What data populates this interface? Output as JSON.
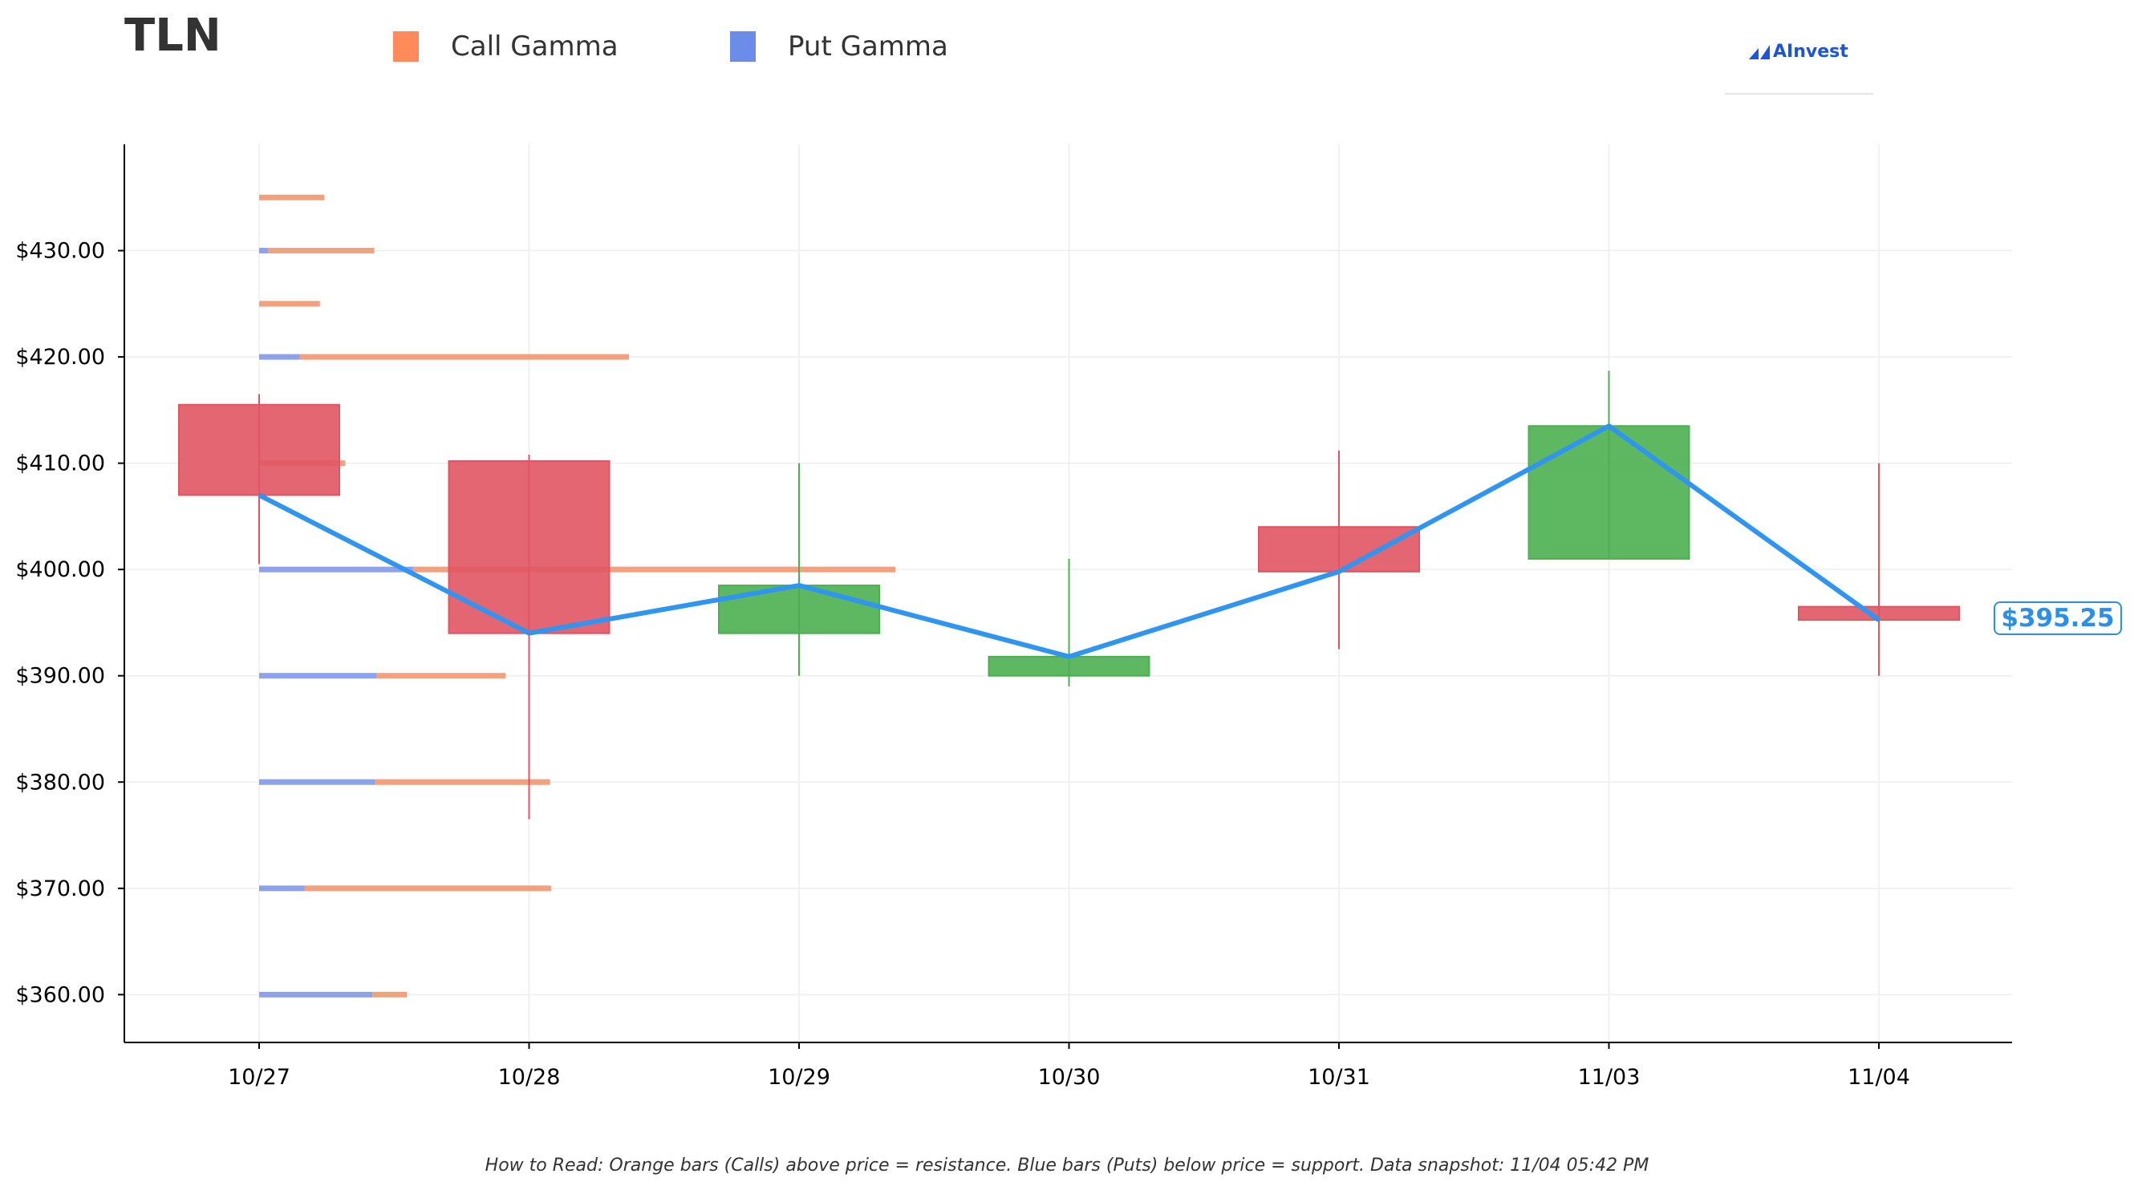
{
  "ticker": "TLN",
  "legend": [
    {
      "label": "Call Gamma",
      "color": "#ff8a5c"
    },
    {
      "label": "Put Gamma",
      "color": "#6b8ce8"
    }
  ],
  "logo": {
    "text": "AInvest"
  },
  "current_price_label": "$395.25",
  "footnote": "How to Read: Orange bars (Calls) above price = resistance. Blue bars (Puts) below price = support. Data snapshot: 11/04 05:42 PM",
  "colors": {
    "up": "#4caf50",
    "down": "#e05563",
    "price_line": "#2f95f0",
    "call": "#f2a07e",
    "put": "#8ea2ec",
    "grid": "#eeeeee",
    "axis": "#000000"
  },
  "chart_data": {
    "type": "candlestick",
    "categories": [
      "10/27",
      "10/28",
      "10/29",
      "10/30",
      "10/31",
      "11/03",
      "11/04"
    ],
    "ylim": [
      355.5,
      440
    ],
    "yticks": [
      360,
      370,
      380,
      390,
      400,
      410,
      420,
      430
    ],
    "ytick_labels": [
      "$360.00",
      "$370.00",
      "$380.00",
      "$390.00",
      "$400.00",
      "$410.00",
      "$420.00",
      "$430.00"
    ],
    "ohlc": [
      {
        "date": "10/27",
        "open": 415.5,
        "high": 416.5,
        "low": 400.5,
        "close": 407.0
      },
      {
        "date": "10/28",
        "open": 410.2,
        "high": 410.8,
        "low": 376.5,
        "close": 394.0
      },
      {
        "date": "10/29",
        "open": 394.0,
        "high": 410.0,
        "low": 390.0,
        "close": 398.5
      },
      {
        "date": "10/30",
        "open": 390.0,
        "high": 401.0,
        "low": 389.0,
        "close": 391.8
      },
      {
        "date": "10/31",
        "open": 404.0,
        "high": 411.2,
        "low": 392.5,
        "close": 399.8
      },
      {
        "date": "11/03",
        "open": 401.0,
        "high": 418.7,
        "low": 401.0,
        "close": 413.5
      },
      {
        "date": "11/04",
        "open": 396.5,
        "high": 410.0,
        "low": 390.0,
        "close": 395.25
      }
    ],
    "price_line": [
      407.0,
      394.0,
      398.5,
      391.8,
      399.8,
      413.5,
      395.25
    ],
    "gamma_levels": [
      {
        "strike": 435,
        "put": 0.0,
        "call": 0.72
      },
      {
        "strike": 430,
        "put": 0.1,
        "call": 1.17
      },
      {
        "strike": 425,
        "put": 0.0,
        "call": 0.67
      },
      {
        "strike": 420,
        "put": 0.45,
        "call": 3.63
      },
      {
        "strike": 410,
        "put": 0.0,
        "call": 0.95
      },
      {
        "strike": 400,
        "put": 1.7,
        "call": 5.32
      },
      {
        "strike": 390,
        "put": 1.3,
        "call": 1.42
      },
      {
        "strike": 380,
        "put": 1.28,
        "call": 1.93
      },
      {
        "strike": 370,
        "put": 0.5,
        "call": 2.72
      },
      {
        "strike": 360,
        "put": 1.25,
        "call": 0.38
      }
    ]
  }
}
